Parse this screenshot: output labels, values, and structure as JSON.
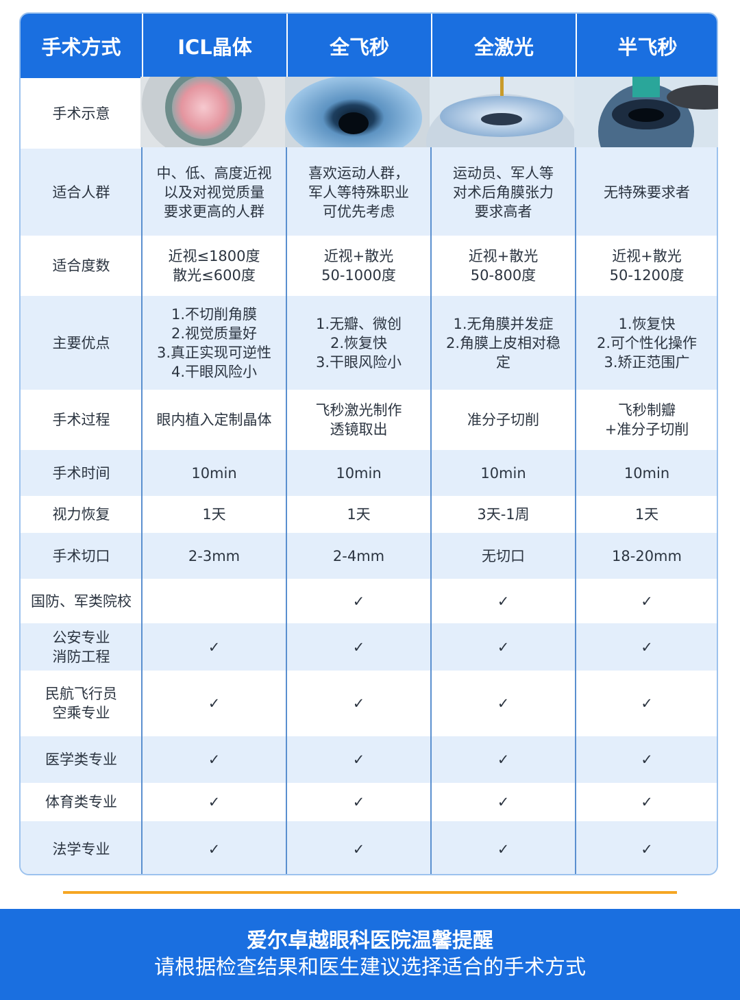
{
  "table": {
    "header": [
      "手术方式",
      "ICL晶体",
      "全飞秒",
      "全激光",
      "半飞秒"
    ],
    "illustration_row": {
      "label": "手术示意"
    },
    "rows": [
      {
        "label": [
          "适合人群"
        ],
        "cells": [
          [
            "中、低、高度近视",
            "以及对视觉质量",
            "要求更高的人群"
          ],
          [
            "喜欢运动人群，",
            "军人等特殊职业",
            "可优先考虑"
          ],
          [
            "运动员、军人等",
            "对术后角膜张力",
            "要求高者"
          ],
          [
            "无特殊要求者"
          ]
        ]
      },
      {
        "label": [
          "适合度数"
        ],
        "cells": [
          [
            "近视≤1800度",
            "散光≤600度"
          ],
          [
            "近视+散光",
            "50-1000度"
          ],
          [
            "近视+散光",
            "50-800度"
          ],
          [
            "近视+散光",
            "50-1200度"
          ]
        ]
      },
      {
        "label": [
          "主要优点"
        ],
        "cells": [
          [
            "1.不切削角膜",
            "2.视觉质量好",
            "3.真正实现可逆性",
            "4.干眼风险小"
          ],
          [
            "1.无瓣、微创",
            "2.恢复快",
            "3.干眼风险小"
          ],
          [
            "1.无角膜并发症",
            "2.角膜上皮相对稳",
            "定"
          ],
          [
            "1.恢复快",
            "2.可个性化操作",
            "3.矫正范围广"
          ]
        ]
      },
      {
        "label": [
          "手术过程"
        ],
        "cells": [
          [
            "眼内植入定制晶体"
          ],
          [
            "飞秒激光制作",
            "透镜取出"
          ],
          [
            "准分子切削"
          ],
          [
            "飞秒制瓣",
            "+准分子切削"
          ]
        ]
      },
      {
        "label": [
          "手术时间"
        ],
        "cells": [
          [
            "10min"
          ],
          [
            "10min"
          ],
          [
            "10min"
          ],
          [
            "10min"
          ]
        ]
      },
      {
        "label": [
          "视力恢复"
        ],
        "cells": [
          [
            "1天"
          ],
          [
            "1天"
          ],
          [
            "3天-1周"
          ],
          [
            "1天"
          ]
        ]
      },
      {
        "label": [
          "手术切口"
        ],
        "cells": [
          [
            "2-3mm"
          ],
          [
            "2-4mm"
          ],
          [
            "无切口"
          ],
          [
            "18-20mm"
          ]
        ]
      },
      {
        "label": [
          "国防、军类院校"
        ],
        "cells": [
          null,
          [
            "✓"
          ],
          [
            "✓"
          ],
          [
            "✓"
          ]
        ]
      },
      {
        "label": [
          "公安专业",
          "消防工程"
        ],
        "cells": [
          [
            "✓"
          ],
          [
            "✓"
          ],
          [
            "✓"
          ],
          [
            "✓"
          ]
        ]
      },
      {
        "label": [
          "民航飞行员",
          "空乘专业"
        ],
        "cells": [
          [
            "✓"
          ],
          [
            "✓"
          ],
          [
            "✓"
          ],
          [
            "✓"
          ]
        ]
      },
      {
        "label": [
          "医学类专业"
        ],
        "cells": [
          [
            "✓"
          ],
          [
            "✓"
          ],
          [
            "✓"
          ],
          [
            "✓"
          ]
        ]
      },
      {
        "label": [
          "体育类专业"
        ],
        "cells": [
          [
            "✓"
          ],
          [
            "✓"
          ],
          [
            "✓"
          ],
          [
            "✓"
          ]
        ]
      },
      {
        "label": [
          "法学专业"
        ],
        "cells": [
          [
            "✓"
          ],
          [
            "✓"
          ],
          [
            "✓"
          ],
          [
            "✓"
          ]
        ]
      }
    ]
  },
  "footer": {
    "title": "爱尔卓越眼科医院温馨提醒",
    "subtitle": "请根据检查结果和医生建议选择适合的手术方式"
  }
}
